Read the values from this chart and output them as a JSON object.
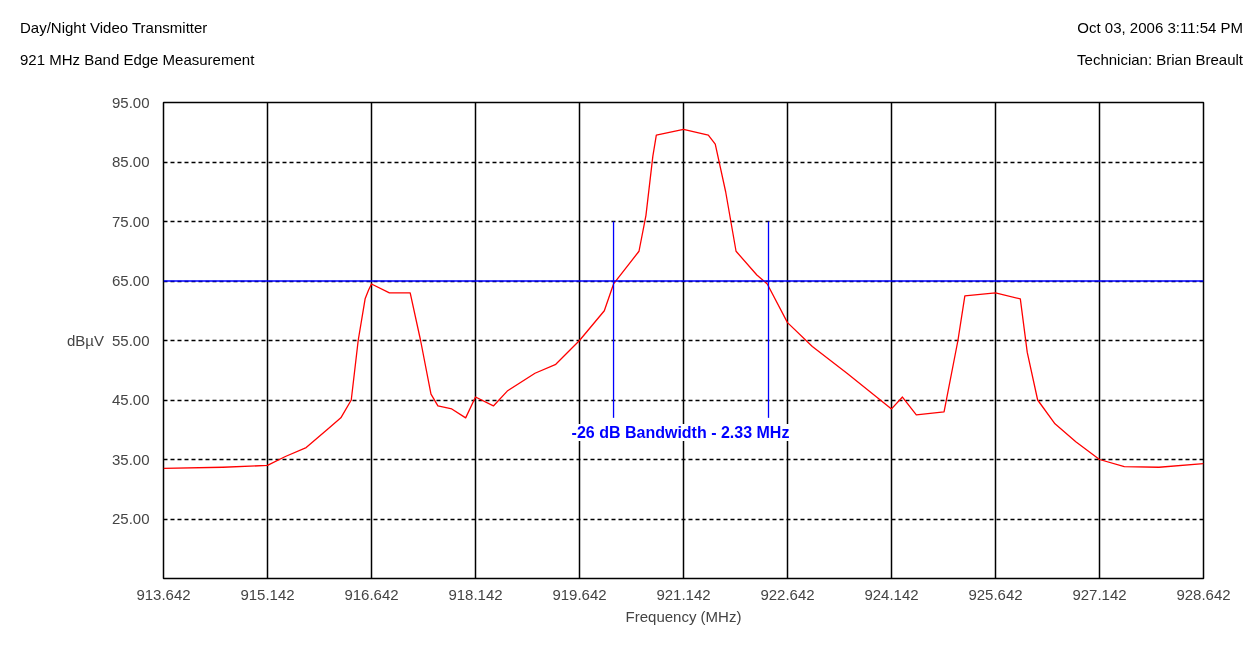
{
  "chart_data": {
    "type": "line",
    "title": "Day/Night Video Transmitter",
    "subtitle": "921 MHz Band Edge Measurement",
    "xlabel": "Frequency (MHz)",
    "ylabel": "dBµV",
    "annotations": [
      "Oct 03, 2006  3:11:54 PM",
      "Technician: Brian Breault",
      "-26 dB Bandwidth - 2.33 MHz"
    ],
    "xlim": [
      913.642,
      928.642
    ],
    "xticks": [
      913.642,
      915.142,
      916.642,
      918.142,
      919.642,
      921.142,
      922.642,
      924.142,
      925.642,
      927.142,
      928.642
    ],
    "ylim": [
      15,
      95
    ],
    "yticks": [
      {
        "value": 25,
        "label": "25.00"
      },
      {
        "value": 35,
        "label": "35.00"
      },
      {
        "value": 45,
        "label": "45.00"
      },
      {
        "value": 55,
        "label": "55.00"
      },
      {
        "value": 65,
        "label": "65.00"
      },
      {
        "value": 75,
        "label": "75.00"
      },
      {
        "value": 85,
        "label": "85.00"
      },
      {
        "value": 95,
        "label": "95.00"
      }
    ],
    "grid": true,
    "ref_lines": [
      {
        "axis": "y",
        "value": 65,
        "color": "#0000ff"
      }
    ],
    "series": [
      {
        "color": "#ff0000",
        "x": [
          913.642,
          914.5,
          915.142,
          915.4,
          915.7,
          916.0,
          916.2,
          916.35,
          916.45,
          916.55,
          916.6,
          916.642,
          916.9,
          917.2,
          917.35,
          917.5,
          917.6,
          917.8,
          918.0,
          918.142,
          918.4,
          918.6,
          919.0,
          919.3,
          919.642,
          920.0,
          920.133,
          920.5,
          920.6,
          920.7,
          920.75,
          921.142,
          921.5,
          921.6,
          921.75,
          921.9,
          922.2,
          922.35,
          922.642,
          923.0,
          923.5,
          924.142,
          924.3,
          924.5,
          924.9,
          925.1,
          925.2,
          925.642,
          926.0,
          926.1,
          926.25,
          926.5,
          926.8,
          927.142,
          927.5,
          928.0,
          928.642
        ],
        "values": [
          33.5,
          33.7,
          34,
          35.5,
          37,
          40,
          42,
          45,
          55,
          62,
          63.5,
          64.5,
          63,
          63,
          55,
          46,
          44,
          43.5,
          42,
          45.5,
          44,
          46.5,
          49.5,
          51,
          55,
          60,
          64.5,
          70,
          76,
          86,
          89.5,
          90.5,
          89.5,
          88,
          80,
          70,
          66,
          64.5,
          58,
          54,
          49.5,
          43.5,
          45.5,
          42.5,
          43,
          55,
          62.5,
          63,
          62,
          53,
          45,
          41,
          38,
          35,
          33.8,
          33.7,
          34.3
        ]
      },
      {
        "type": "line",
        "color": "#0000ff",
        "x": [
          920.133,
          920.133
        ],
        "values": [
          75,
          42
        ]
      },
      {
        "type": "line",
        "color": "#0000ff",
        "x": [
          922.368,
          922.368
        ],
        "values": [
          75,
          42
        ]
      }
    ]
  }
}
